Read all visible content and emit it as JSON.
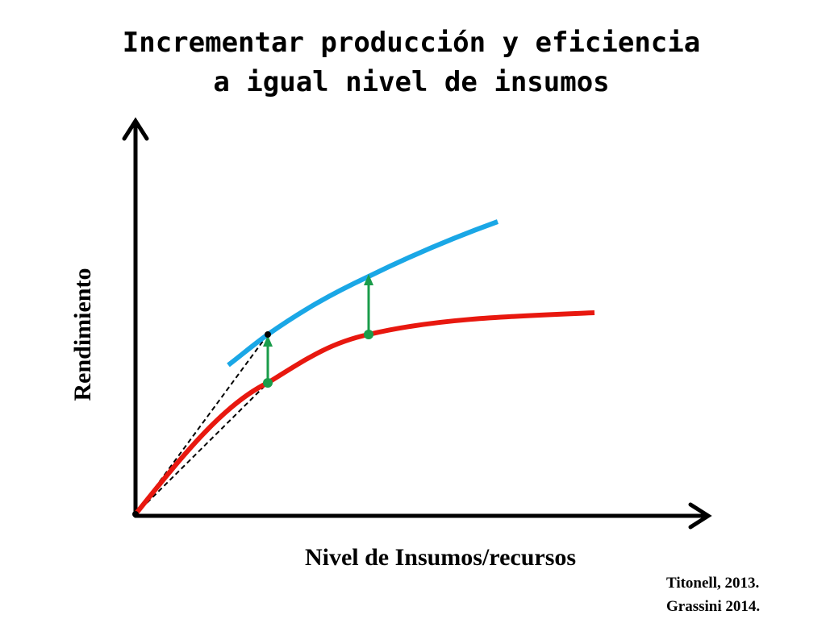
{
  "title": {
    "line1": "Incrementar producción y eficiencia",
    "line2": "a igual nivel de insumos"
  },
  "axes": {
    "y_label": "Rendimiento",
    "x_label": "Nivel de Insumos/recursos"
  },
  "citations": [
    "Titonell, 2013.",
    "Grassini 2014."
  ]
}
